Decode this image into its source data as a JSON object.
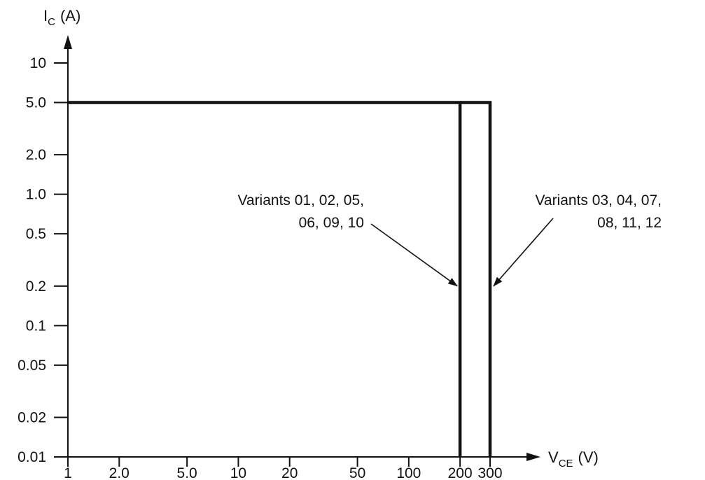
{
  "chart_data": {
    "type": "line",
    "x_scale": "log",
    "y_scale": "log",
    "ylabel_main": "I",
    "ylabel_sub": "C",
    "ylabel_unit": "(A)",
    "xlabel_main": "V",
    "xlabel_sub": "CE",
    "xlabel_unit": "(V)",
    "x_ticks": [
      {
        "value": 1,
        "label": "1"
      },
      {
        "value": 2,
        "label": "2.0"
      },
      {
        "value": 5,
        "label": "5.0"
      },
      {
        "value": 10,
        "label": "10"
      },
      {
        "value": 20,
        "label": "20"
      },
      {
        "value": 50,
        "label": "50"
      },
      {
        "value": 100,
        "label": "100"
      },
      {
        "value": 200,
        "label": "200"
      },
      {
        "value": 300,
        "label": "300"
      }
    ],
    "y_ticks": [
      {
        "value": 0.01,
        "label": "0.01"
      },
      {
        "value": 0.02,
        "label": "0.02"
      },
      {
        "value": 0.05,
        "label": "0.05"
      },
      {
        "value": 0.1,
        "label": "0.1"
      },
      {
        "value": 0.2,
        "label": "0.2"
      },
      {
        "value": 0.5,
        "label": "0.5"
      },
      {
        "value": 1,
        "label": "1.0"
      },
      {
        "value": 2,
        "label": "2.0"
      },
      {
        "value": 5,
        "label": "5.0"
      },
      {
        "value": 10,
        "label": "10"
      }
    ],
    "series": [
      {
        "points": [
          [
            1,
            5
          ],
          [
            200,
            5
          ],
          [
            200,
            0.01
          ]
        ]
      },
      {
        "points": [
          [
            200,
            5
          ],
          [
            300,
            5
          ],
          [
            300,
            0.01
          ]
        ]
      }
    ],
    "annotations": [
      {
        "lines": [
          "Variants 01, 02, 05,",
          "06, 09, 10"
        ],
        "points_to": [
          200,
          0.2
        ]
      },
      {
        "lines": [
          "Variants 03, 04, 07,",
          "08, 11, 12"
        ],
        "points_to": [
          300,
          0.2
        ]
      }
    ]
  }
}
